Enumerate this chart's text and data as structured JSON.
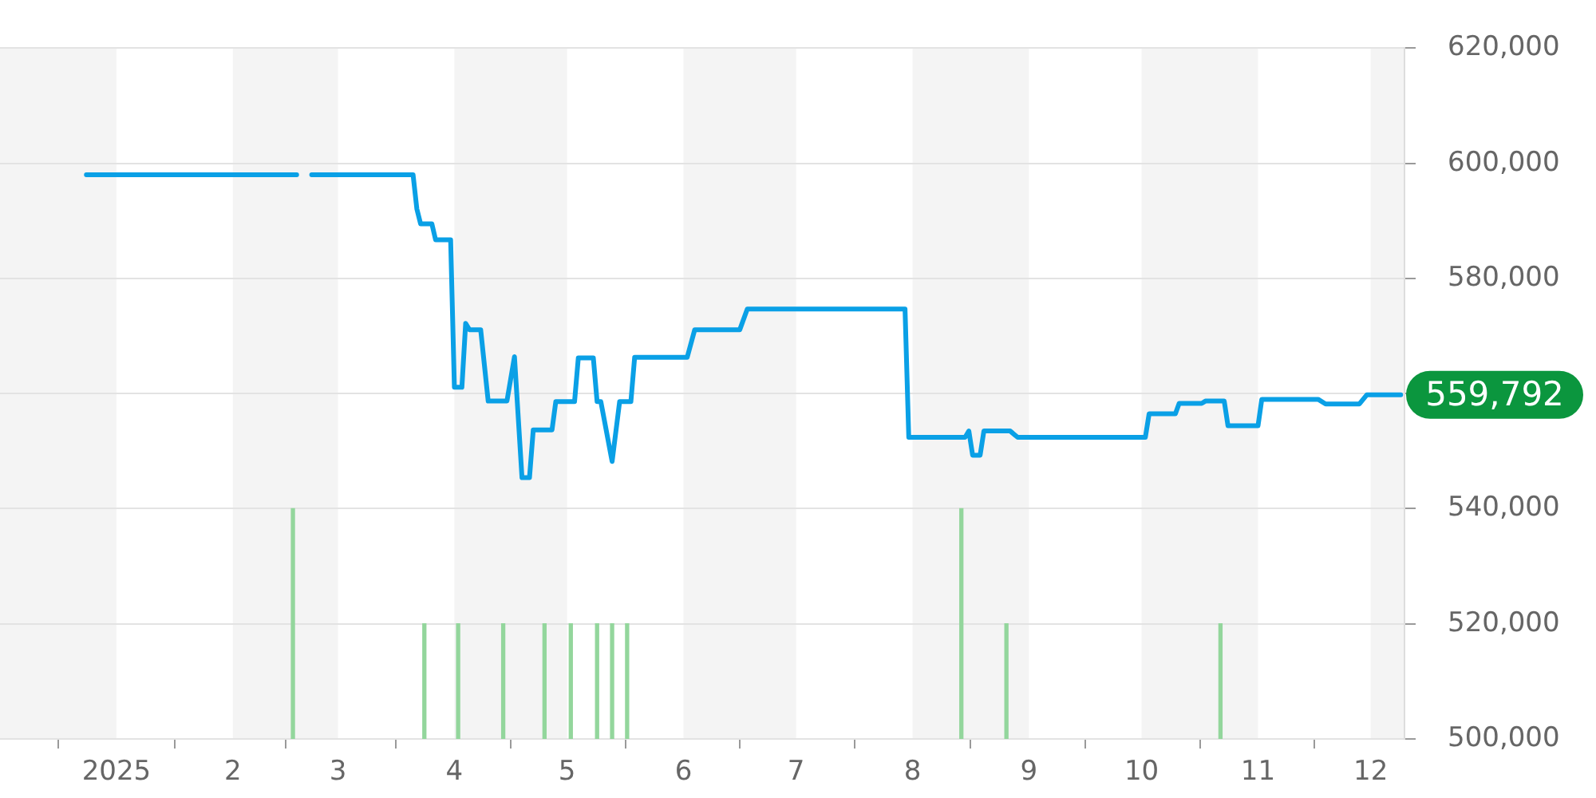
{
  "chart_data": {
    "type": "line",
    "xlim": [
      "2024-12-01",
      "2025-12-10"
    ],
    "xticks": [
      {
        "value": "2025-01-01",
        "label": "2025"
      },
      {
        "value": "2025-02-01",
        "label": "2"
      },
      {
        "value": "2025-03-01",
        "label": "3"
      },
      {
        "value": "2025-04-01",
        "label": "4"
      },
      {
        "value": "2025-05-01",
        "label": "5"
      },
      {
        "value": "2025-06-01",
        "label": "6"
      },
      {
        "value": "2025-07-01",
        "label": "7"
      },
      {
        "value": "2025-08-01",
        "label": "8"
      },
      {
        "value": "2025-09-01",
        "label": "9"
      },
      {
        "value": "2025-10-01",
        "label": "10"
      },
      {
        "value": "2025-11-01",
        "label": "11"
      },
      {
        "value": "2025-12-01",
        "label": "12"
      }
    ],
    "ylim": [
      500000,
      620000
    ],
    "yticks": [
      {
        "value": 500000,
        "label": "500,000"
      },
      {
        "value": 520000,
        "label": "520,000"
      },
      {
        "value": 540000,
        "label": "540,000"
      },
      {
        "value": 560000,
        "label": null
      },
      {
        "value": 580000,
        "label": "580,000"
      },
      {
        "value": 600000,
        "label": "600,000"
      },
      {
        "value": 620000,
        "label": "620,000"
      }
    ],
    "grid": "y",
    "marker": "none",
    "line_style": "solid",
    "bands": [
      {
        "axis": "x",
        "from": "2024-12-01",
        "to": "2025-01-01",
        "color": "#f4f4f4"
      },
      {
        "axis": "x",
        "from": "2025-02-01",
        "to": "2025-03-01",
        "color": "#f4f4f4"
      },
      {
        "axis": "x",
        "from": "2025-04-01",
        "to": "2025-05-01",
        "color": "#f4f4f4"
      },
      {
        "axis": "x",
        "from": "2025-06-01",
        "to": "2025-07-01",
        "color": "#f4f4f4"
      },
      {
        "axis": "x",
        "from": "2025-08-01",
        "to": "2025-09-01",
        "color": "#f4f4f4"
      },
      {
        "axis": "x",
        "from": "2025-10-01",
        "to": "2025-11-01",
        "color": "#f4f4f4"
      },
      {
        "axis": "x",
        "from": "2025-12-01",
        "to": "2025-12-10",
        "color": "#f4f4f4"
      }
    ],
    "annotations": [
      {
        "text": "559,792",
        "x": "2025-12-09",
        "y": 559792
      }
    ],
    "series": [
      {
        "color": "#0aa0e6",
        "x": [
          "2024-12-24",
          "2025-02-18",
          "2025-02-20",
          "2025-02-22",
          "2025-03-21",
          "2025-03-22",
          "2025-03-23",
          "2025-03-26",
          "2025-03-27",
          "2025-03-31",
          "2025-04-01",
          "2025-04-03",
          "2025-04-04",
          "2025-04-05",
          "2025-04-08",
          "2025-04-10",
          "2025-04-15",
          "2025-04-17",
          "2025-04-19",
          "2025-04-21",
          "2025-04-22",
          "2025-04-27",
          "2025-04-28",
          "2025-05-03",
          "2025-05-04",
          "2025-05-08",
          "2025-05-09",
          "2025-05-10",
          "2025-05-13",
          "2025-05-15",
          "2025-05-18",
          "2025-05-19",
          "2025-06-02",
          "2025-06-04",
          "2025-06-16",
          "2025-06-18",
          "2025-07-30",
          "2025-07-31",
          "2025-08-15",
          "2025-08-16",
          "2025-08-17",
          "2025-08-19",
          "2025-08-20",
          "2025-08-27",
          "2025-08-29",
          "2025-10-02",
          "2025-10-03",
          "2025-10-10",
          "2025-10-11",
          "2025-10-17",
          "2025-10-18",
          "2025-10-23",
          "2025-10-24",
          "2025-11-01",
          "2025-11-02",
          "2025-11-17",
          "2025-11-19",
          "2025-11-28",
          "2025-11-30",
          "2025-12-09"
        ],
        "values": [
          598000,
          598000,
          null,
          598000,
          598000,
          592100,
          589500,
          589500,
          586700,
          586700,
          561100,
          561100,
          572200,
          571100,
          571100,
          558700,
          558700,
          566400,
          545400,
          545400,
          553700,
          553700,
          558600,
          558600,
          566200,
          566200,
          558600,
          558600,
          548200,
          558600,
          558600,
          566300,
          566300,
          571100,
          571100,
          574700,
          574700,
          552400,
          552400,
          553500,
          549300,
          549300,
          553500,
          553500,
          552400,
          552400,
          556500,
          556500,
          558300,
          558300,
          558700,
          558700,
          554400,
          554400,
          559000,
          559000,
          558200,
          558200,
          559792,
          559792
        ]
      },
      {
        "type": "bar",
        "color": "#93d69c",
        "x": [
          "2025-02-17",
          "2025-03-24",
          "2025-04-02",
          "2025-04-14",
          "2025-04-25",
          "2025-05-02",
          "2025-05-09",
          "2025-05-13",
          "2025-05-17",
          "2025-08-14",
          "2025-08-26",
          "2025-10-22"
        ],
        "values": [
          540000,
          520000,
          520000,
          520000,
          520000,
          520000,
          520000,
          520000,
          520000,
          540000,
          520000,
          520000
        ]
      }
    ]
  }
}
